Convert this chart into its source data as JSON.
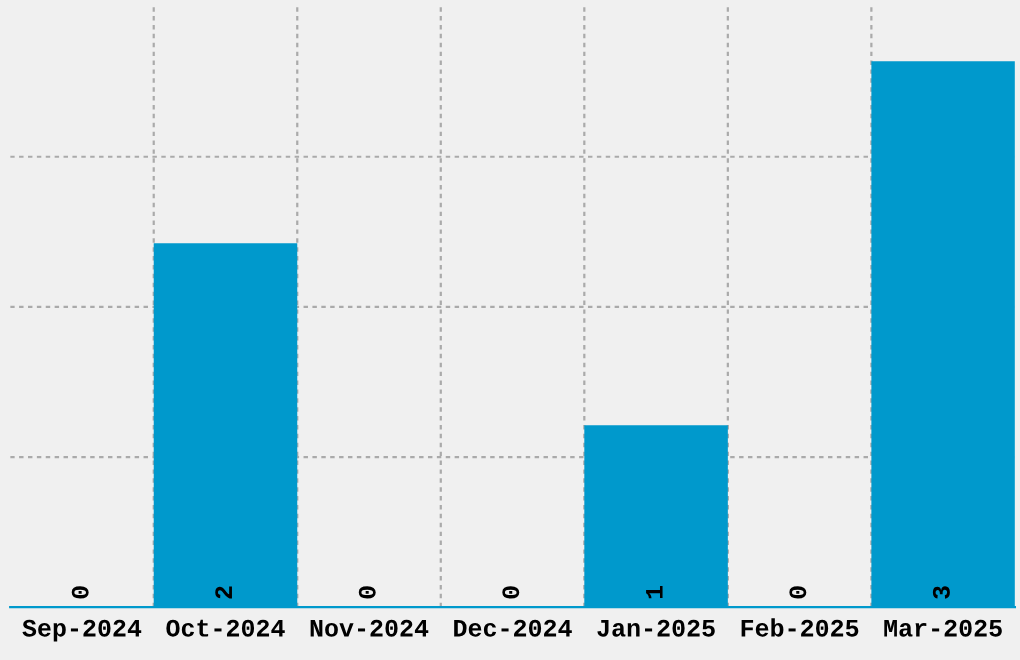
{
  "chart_data": {
    "type": "bar",
    "categories": [
      "Sep-2024",
      "Oct-2024",
      "Nov-2024",
      "Dec-2024",
      "Jan-2025",
      "Feb-2025",
      "Mar-2025"
    ],
    "values": [
      0,
      2,
      0,
      0,
      1,
      0,
      3
    ],
    "color": "#0099cc",
    "data_labels": true,
    "grid": true,
    "ylim": [
      0,
      3.3
    ],
    "yticks": [
      {
        "value": 0.825,
        "label": null
      },
      {
        "value": 1.65,
        "label": null
      },
      {
        "value": 2.475,
        "label": null
      }
    ],
    "tick_labels": "x"
  }
}
